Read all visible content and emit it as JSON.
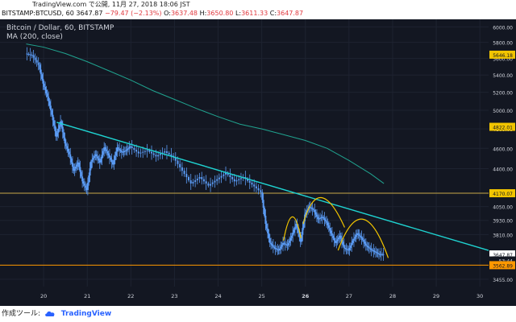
{
  "header": {
    "published": "TradingView.com で公開, 11月 27, 2018 18:06 JST",
    "symbol": "BITSTAMP:BTCUSD, 60",
    "last": "3647.87",
    "change": "−79.47 (−2.13%)",
    "o_label": "O:",
    "o": "3637.48",
    "h_label": "H:",
    "h": "3650.80",
    "l_label": "L:",
    "l": "3611.33",
    "c_label": "C:",
    "c": "3647.87"
  },
  "legend": {
    "title": "Bitcoin / Dollar, 60, BITSTAMP",
    "ma": "MA (200, close)"
  },
  "colors": {
    "background": "#131722",
    "candle": "#5b9cf6",
    "ma": "#20a38f",
    "trendline": "#1fd3d1",
    "pattern": "#f2c500",
    "support": "#ff9800",
    "resistance": "#c8a84a",
    "last_price": "#ffffff",
    "axis_text": "#d1d4dc"
  },
  "footer": {
    "label": "作成ツール:",
    "brand": "TradingView"
  },
  "chart_data": {
    "type": "line",
    "x_labels": [
      "20",
      "21",
      "22",
      "23",
      "24",
      "25",
      "26",
      "27",
      "28",
      "29",
      "30"
    ],
    "y_labels": [
      "6000.00",
      "5800.00",
      "5600.00",
      "5400.00",
      "5200.00",
      "5000.00",
      "4800.00",
      "4600.00",
      "4400.00",
      "4050.00",
      "3930.00",
      "3810.00",
      "3455.00"
    ],
    "ylim": [
      3400,
      6100
    ],
    "y_scale": "log",
    "series": [
      {
        "role": "price",
        "x": [
          19.6,
          19.75,
          19.9,
          20.0,
          20.1,
          20.2,
          20.3,
          20.4,
          20.5,
          20.6,
          20.7,
          20.8,
          20.9,
          21.0,
          21.1,
          21.2,
          21.3,
          21.4,
          21.5,
          21.6,
          21.7,
          21.8,
          21.9,
          22.0,
          22.2,
          22.4,
          22.6,
          22.8,
          23.0,
          23.2,
          23.4,
          23.6,
          23.8,
          24.0,
          24.2,
          24.4,
          24.6,
          24.8,
          25.0,
          25.1,
          25.2,
          25.3,
          25.4,
          25.5,
          25.6,
          25.7,
          25.8,
          25.9,
          26.0,
          26.1,
          26.2,
          26.3,
          26.4,
          26.5,
          26.6,
          26.7,
          26.8,
          26.9,
          27.0,
          27.1,
          27.2,
          27.3,
          27.4,
          27.5,
          27.6,
          27.7,
          27.8
        ],
        "y": [
          5660,
          5640,
          5520,
          5300,
          5150,
          4950,
          4720,
          4880,
          4650,
          4540,
          4380,
          4460,
          4280,
          4200,
          4470,
          4540,
          4460,
          4610,
          4530,
          4440,
          4610,
          4560,
          4580,
          4620,
          4550,
          4580,
          4520,
          4570,
          4510,
          4380,
          4260,
          4320,
          4240,
          4300,
          4360,
          4280,
          4320,
          4250,
          4180,
          3900,
          3740,
          3700,
          3680,
          3740,
          3720,
          3800,
          3900,
          3750,
          3980,
          4050,
          4020,
          3940,
          3960,
          3910,
          3820,
          3740,
          3800,
          3700,
          3680,
          3760,
          3820,
          3780,
          3720,
          3690,
          3670,
          3650,
          3648
        ]
      },
      {
        "role": "ma",
        "x": [
          19.6,
          20.0,
          20.5,
          21.0,
          21.5,
          22.0,
          22.5,
          23.0,
          23.5,
          24.0,
          24.5,
          25.0,
          25.5,
          26.0,
          26.5,
          27.0,
          27.5,
          27.8
        ],
        "y": [
          5780,
          5740,
          5660,
          5560,
          5450,
          5340,
          5220,
          5120,
          5020,
          4930,
          4850,
          4800,
          4740,
          4680,
          4600,
          4480,
          4350,
          4260
        ]
      }
    ],
    "trendline": {
      "x": [
        20.3,
        30.2
      ],
      "y": [
        4870,
        3680
      ]
    },
    "support_lines": [
      {
        "y": 3562.89,
        "label": "3562.89"
      },
      {
        "y": 4170.07,
        "label": "4170.07"
      }
    ],
    "price_tags": [
      {
        "y": 5646.18,
        "label": "5646.18"
      },
      {
        "y": 4822.01,
        "label": "4822.01"
      },
      {
        "y": 3647.87,
        "label": "3647.87"
      },
      {
        "y": 3600.0,
        "label": "53:44"
      }
    ],
    "pattern": {
      "left_shoulder": {
        "x": [
          25.5,
          25.7,
          25.9
        ],
        "y": [
          3760,
          3960,
          3780
        ]
      },
      "head": {
        "x": [
          25.95,
          26.3,
          26.9
        ],
        "y": [
          3900,
          4130,
          3870
        ]
      },
      "right_shoulder": {
        "x": [
          26.75,
          27.3,
          27.9
        ],
        "y": [
          3680,
          3940,
          3620
        ]
      }
    }
  }
}
